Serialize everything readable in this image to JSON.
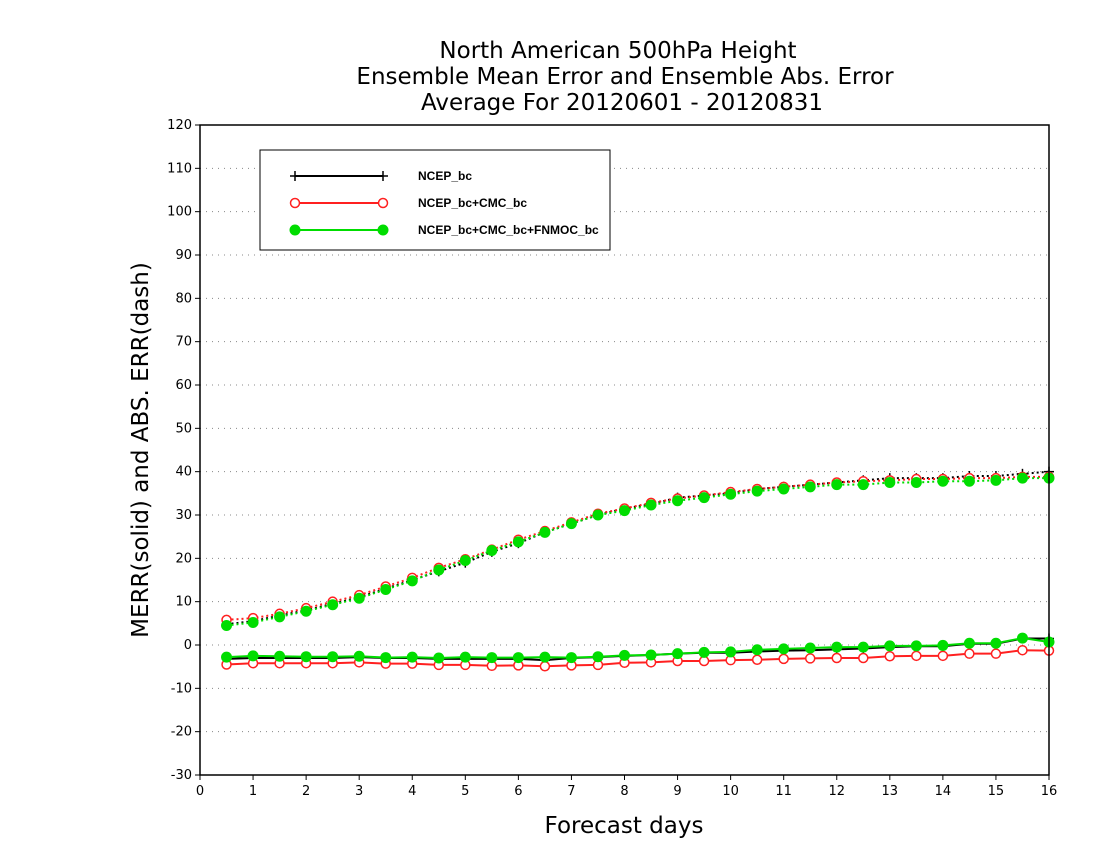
{
  "chart_data": {
    "type": "line",
    "title_lines": [
      "North American 500hPa Height",
      "Ensemble Mean Error and Ensemble Abs. Error",
      "Average For 20120601 - 20120831"
    ],
    "xlabel": "Forecast days",
    "ylabel": "MERR(solid) and ABS. ERR(dash)",
    "xlim": [
      0,
      16
    ],
    "ylim": [
      -30,
      120
    ],
    "xticks": [
      0,
      1,
      2,
      3,
      4,
      5,
      6,
      7,
      8,
      9,
      10,
      11,
      12,
      13,
      14,
      15,
      16
    ],
    "yticks": [
      -30,
      -20,
      -10,
      0,
      10,
      20,
      30,
      40,
      50,
      60,
      70,
      80,
      90,
      100,
      110,
      120
    ],
    "grid": "horizontal dotted",
    "legend_position": "top-left",
    "x": [
      0.5,
      1,
      1.5,
      2,
      2.5,
      3,
      3.5,
      4,
      4.5,
      5,
      5.5,
      6,
      6.5,
      7,
      7.5,
      8,
      8.5,
      9,
      9.5,
      10,
      10.5,
      11,
      11.5,
      12,
      12.5,
      13,
      13.5,
      14,
      14.5,
      15,
      15.5,
      16
    ],
    "series": [
      {
        "name": "NCEP_bc",
        "color": "#000000",
        "marker": "plus",
        "merr": [
          -3.2,
          -3.0,
          -3.0,
          -3.0,
          -3.0,
          -2.8,
          -3.0,
          -3.0,
          -3.2,
          -3.2,
          -3.2,
          -3.2,
          -3.5,
          -3.0,
          -2.8,
          -2.5,
          -2.3,
          -2.0,
          -1.8,
          -1.8,
          -1.5,
          -1.3,
          -1.2,
          -1.0,
          -0.8,
          -0.5,
          -0.3,
          -0.3,
          0.3,
          0.3,
          1.5,
          1.5
        ],
        "abs_err": [
          4.8,
          5.5,
          6.8,
          8.0,
          9.5,
          11.0,
          13.0,
          15.0,
          17.0,
          19.0,
          21.5,
          23.5,
          26.0,
          28.0,
          30.0,
          31.5,
          32.5,
          34.0,
          34.5,
          35.0,
          36.0,
          36.5,
          37.0,
          37.5,
          38.0,
          38.5,
          38.5,
          38.5,
          39.0,
          39.0,
          39.5,
          40.0
        ]
      },
      {
        "name": "NCEP_bc+CMC_bc",
        "color": "#ff2020",
        "marker": "open-circle",
        "merr": [
          -4.5,
          -4.2,
          -4.2,
          -4.2,
          -4.2,
          -4.0,
          -4.3,
          -4.3,
          -4.6,
          -4.6,
          -4.8,
          -4.7,
          -4.9,
          -4.7,
          -4.6,
          -4.1,
          -4.0,
          -3.7,
          -3.7,
          -3.5,
          -3.4,
          -3.2,
          -3.1,
          -3.0,
          -3.0,
          -2.6,
          -2.5,
          -2.5,
          -2.0,
          -2.0,
          -1.2,
          -1.3
        ],
        "abs_err": [
          5.8,
          6.2,
          7.2,
          8.5,
          10.0,
          11.5,
          13.5,
          15.5,
          17.8,
          19.8,
          22.0,
          24.3,
          26.3,
          28.3,
          30.3,
          31.5,
          32.8,
          33.8,
          34.5,
          35.3,
          36.0,
          36.5,
          37.0,
          37.5,
          37.8,
          38.0,
          38.3,
          38.3,
          38.5,
          38.5,
          38.8,
          38.8
        ]
      },
      {
        "name": "NCEP_bc+CMC_bc+FNMOC_bc",
        "color": "#00dd00",
        "marker": "filled-circle",
        "merr": [
          -2.8,
          -2.5,
          -2.6,
          -2.7,
          -2.7,
          -2.6,
          -2.9,
          -2.8,
          -3.0,
          -2.8,
          -2.9,
          -2.9,
          -2.8,
          -2.9,
          -2.7,
          -2.4,
          -2.3,
          -2.0,
          -1.7,
          -1.6,
          -1.1,
          -0.9,
          -0.7,
          -0.5,
          -0.5,
          -0.2,
          -0.2,
          -0.1,
          0.4,
          0.4,
          1.6,
          0.7
        ],
        "abs_err": [
          4.5,
          5.2,
          6.5,
          7.8,
          9.3,
          10.8,
          12.8,
          14.8,
          17.3,
          19.5,
          21.8,
          23.8,
          26.0,
          28.0,
          30.0,
          31.0,
          32.3,
          33.3,
          34.0,
          34.8,
          35.5,
          36.0,
          36.5,
          37.0,
          37.0,
          37.5,
          37.5,
          37.8,
          37.8,
          38.0,
          38.5,
          38.5
        ]
      }
    ]
  }
}
